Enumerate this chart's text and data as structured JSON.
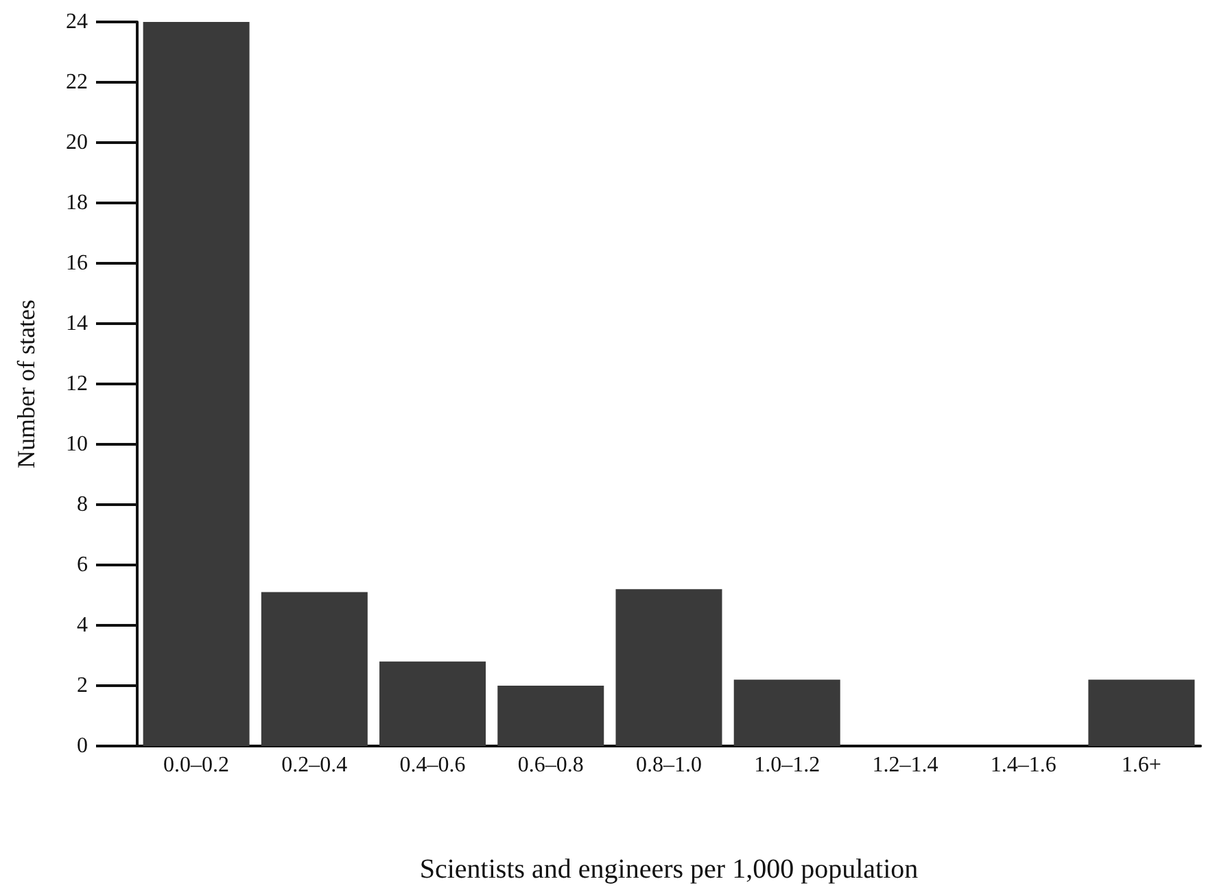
{
  "chart_data": {
    "type": "bar",
    "xlabel": "Scientists and engineers per 1,000 population",
    "ylabel": "Number of states",
    "categories": [
      "0.0–0.2",
      "0.2–0.4",
      "0.4–0.6",
      "0.6–0.8",
      "0.8–1.0",
      "1.0–1.2",
      "1.2–1.4",
      "1.4–1.6",
      "1.6+"
    ],
    "values": [
      24,
      5.1,
      2.8,
      2,
      5.2,
      2.2,
      0,
      0,
      2.2
    ],
    "color": "#3a3a3a",
    "ylim": [
      0,
      24
    ],
    "yticks": [
      0,
      2,
      4,
      6,
      8,
      10,
      12,
      14,
      16,
      18,
      20,
      22,
      24
    ],
    "grid": false
  }
}
